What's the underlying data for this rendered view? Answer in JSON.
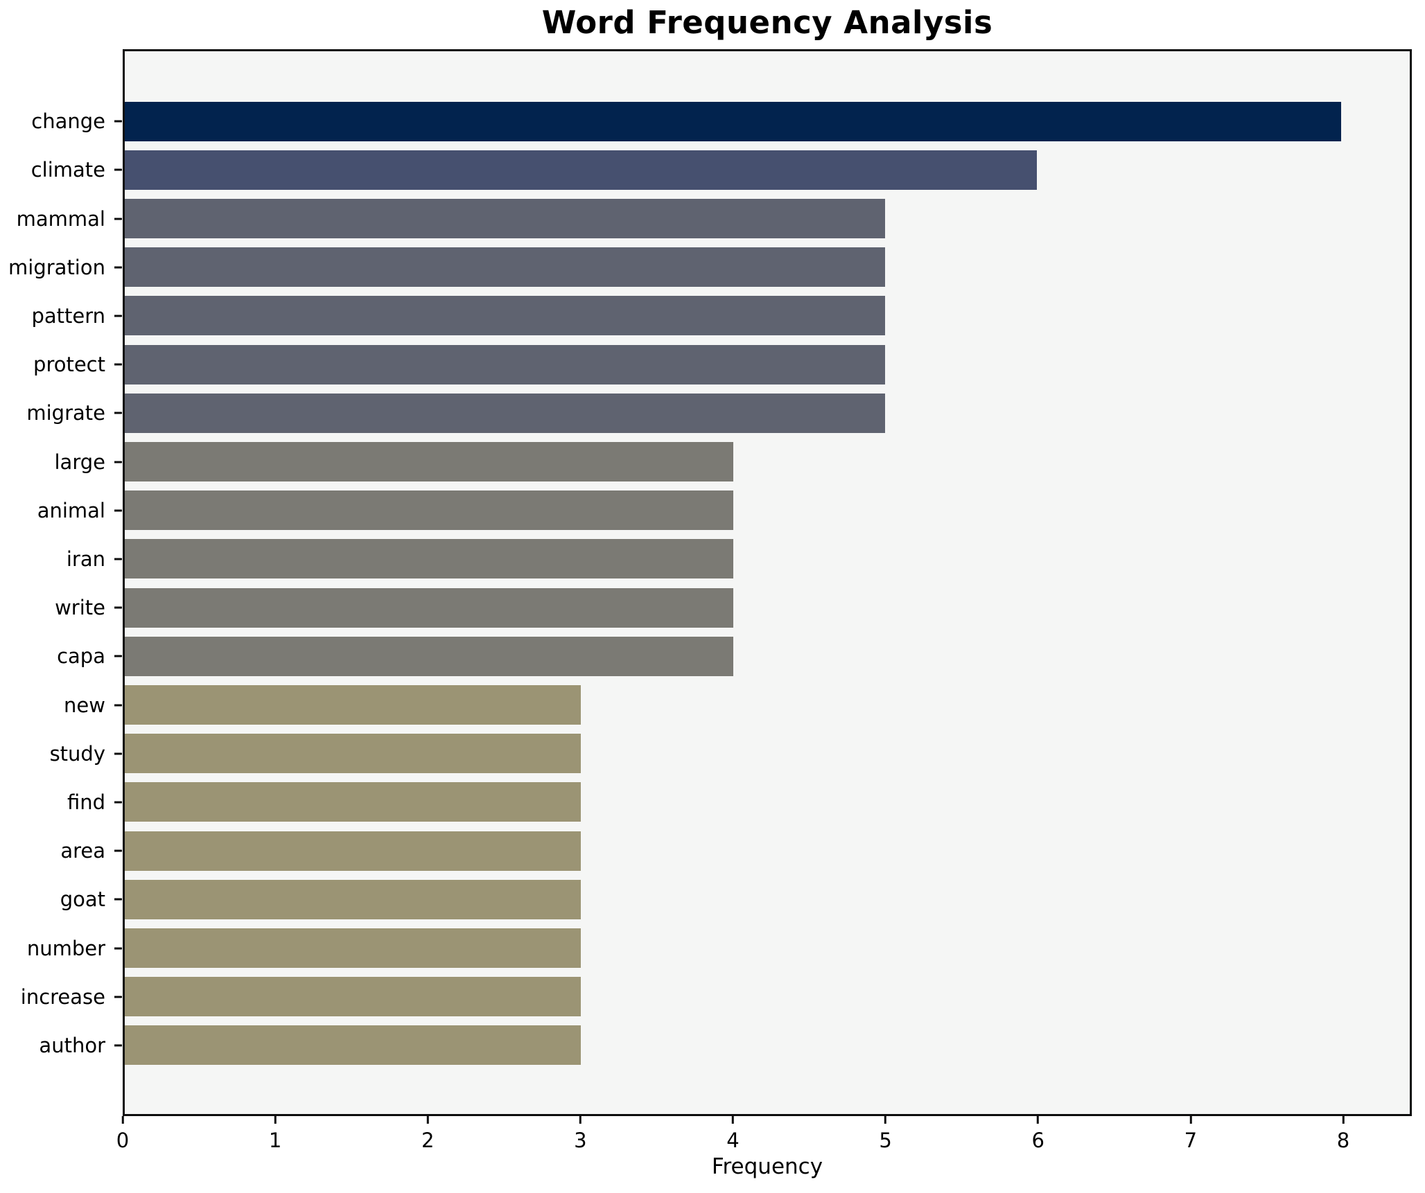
{
  "chart_data": {
    "type": "bar",
    "orientation": "horizontal",
    "title": "Word Frequency Analysis",
    "xlabel": "Frequency",
    "ylabel": "",
    "categories": [
      "change",
      "climate",
      "mammal",
      "migration",
      "pattern",
      "protect",
      "migrate",
      "large",
      "animal",
      "iran",
      "write",
      "capa",
      "new",
      "study",
      "find",
      "area",
      "goat",
      "number",
      "increase",
      "author"
    ],
    "values": [
      8,
      6,
      5,
      5,
      5,
      5,
      5,
      4,
      4,
      4,
      4,
      4,
      3,
      3,
      3,
      3,
      3,
      3,
      3,
      3
    ],
    "bar_colors": [
      "#02234e",
      "#46506f",
      "#5f6370",
      "#5f6370",
      "#5f6370",
      "#5f6370",
      "#5f6370",
      "#7b7a74",
      "#7b7a74",
      "#7b7a74",
      "#7b7a74",
      "#7b7a74",
      "#9b9474",
      "#9b9474",
      "#9b9474",
      "#9b9474",
      "#9b9474",
      "#9b9474",
      "#9b9474",
      "#9b9474"
    ],
    "x_ticks": [
      0,
      1,
      2,
      3,
      4,
      5,
      6,
      7,
      8
    ],
    "xlim": [
      0,
      8.45
    ],
    "grid": false,
    "legend_position": "none",
    "axes_background": "#f5f6f5",
    "figure_background": "#ffffff",
    "spine_color": "#0d0d0d",
    "title_color": "#000000",
    "tick_label_color": "#000000"
  }
}
